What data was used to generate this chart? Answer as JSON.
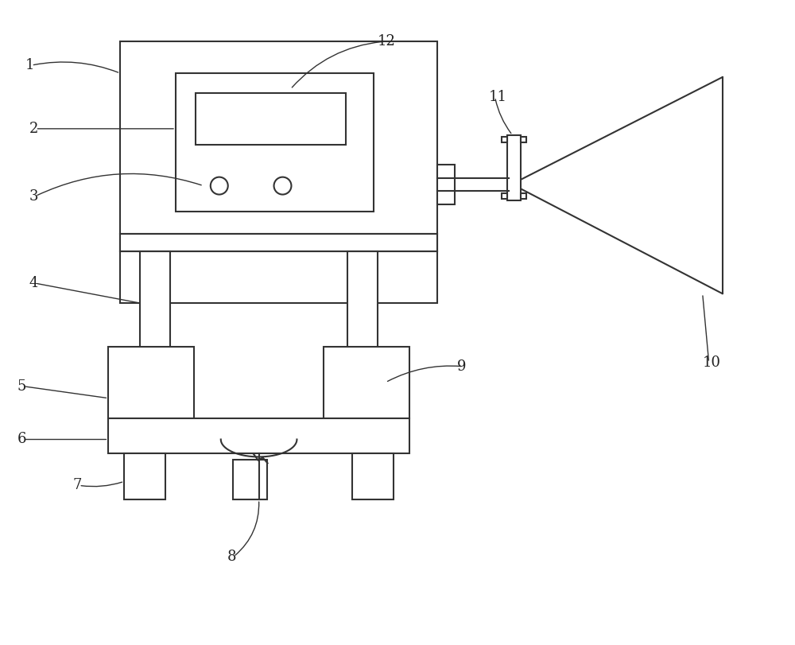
{
  "bg_color": "#ffffff",
  "line_color": "#333333",
  "lw": 1.5,
  "fig_w": 10.0,
  "fig_h": 8.11,
  "xlim": [
    0,
    10
  ],
  "ylim": [
    0,
    8.11
  ],
  "label_fs": 13
}
